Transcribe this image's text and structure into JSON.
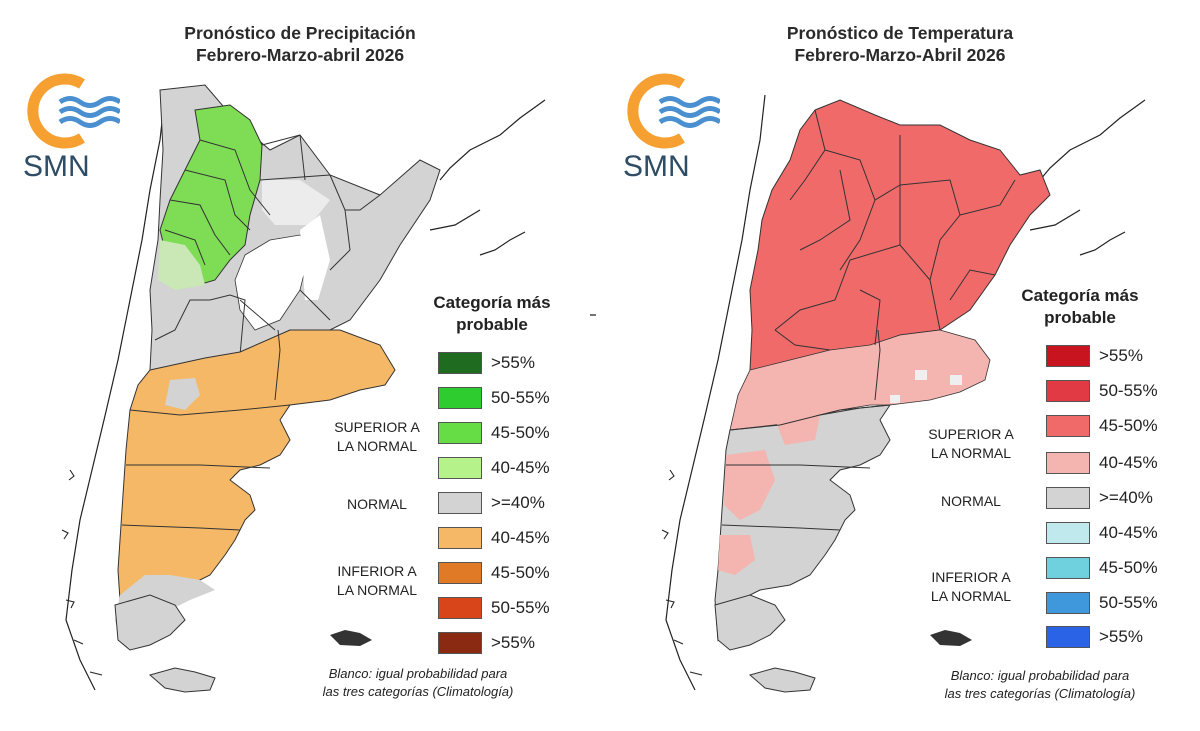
{
  "panels": [
    {
      "title_line1": "Pronóstico de Precipitación",
      "title_line2": "Febrero-Marzo-abril 2026",
      "logo_text": "SMN",
      "legend_title_line1": "Categoría más",
      "legend_title_line2": "probable",
      "legend": [
        {
          "label": ">55%",
          "color": "#1f6b1f"
        },
        {
          "label": "50-55%",
          "color": "#2ecc2e"
        },
        {
          "label": "45-50%",
          "color": "#66dd44"
        },
        {
          "label": "40-45%",
          "color": "#b6f28a"
        },
        {
          "label": ">=40%",
          "color": "#d3d3d3"
        },
        {
          "label": "40-45%",
          "color": "#f5b866"
        },
        {
          "label": "45-50%",
          "color": "#e07a26"
        },
        {
          "label": "50-55%",
          "color": "#d9451b"
        },
        {
          "label": ">55%",
          "color": "#8b2a12"
        }
      ],
      "cat_superior_1": "SUPERIOR A",
      "cat_superior_2": "LA NORMAL",
      "cat_normal": "NORMAL",
      "cat_inferior_1": "INFERIOR A",
      "cat_inferior_2": "LA NORMAL",
      "note_line1": "Blanco: igual probabilidad para",
      "note_line2": "las tres categorías (Climatología)"
    },
    {
      "title_line1": "Pronóstico de Temperatura",
      "title_line2": "Febrero-Marzo-Abril 2026",
      "logo_text": "SMN",
      "legend_title_line1": "Categoría más",
      "legend_title_line2": "probable",
      "legend": [
        {
          "label": ">55%",
          "color": "#c8141e"
        },
        {
          "label": "50-55%",
          "color": "#e23a45"
        },
        {
          "label": "45-50%",
          "color": "#f06a6a"
        },
        {
          "label": "40-45%",
          "color": "#f4b4b0"
        },
        {
          "label": ">=40%",
          "color": "#d3d3d3"
        },
        {
          "label": "40-45%",
          "color": "#bfe9ec"
        },
        {
          "label": "45-50%",
          "color": "#6fd0de"
        },
        {
          "label": "50-55%",
          "color": "#3f98dc"
        },
        {
          "label": ">55%",
          "color": "#2a63e6"
        }
      ],
      "cat_superior_1": "SUPERIOR A",
      "cat_superior_2": "LA NORMAL",
      "cat_normal": "NORMAL",
      "cat_inferior_1": "INFERIOR A",
      "cat_inferior_2": "LA NORMAL",
      "note_line1": "Blanco: igual probabilidad para",
      "note_line2": "las tres categorías (Climatología)"
    }
  ],
  "colors": {
    "logo_orange": "#f5a030",
    "logo_blue": "#4a90d0",
    "logo_text": "#2d4c66",
    "map_outline": "#333333",
    "coast": "#222222",
    "precip_north_wet": "#7fdc55",
    "precip_normal": "#d3d3d3",
    "precip_south_dry": "#f5b866",
    "temp_north_warm": "#f06a6a",
    "temp_mid_warm": "#f4b4b0",
    "temp_normal": "#d3d3d3"
  }
}
